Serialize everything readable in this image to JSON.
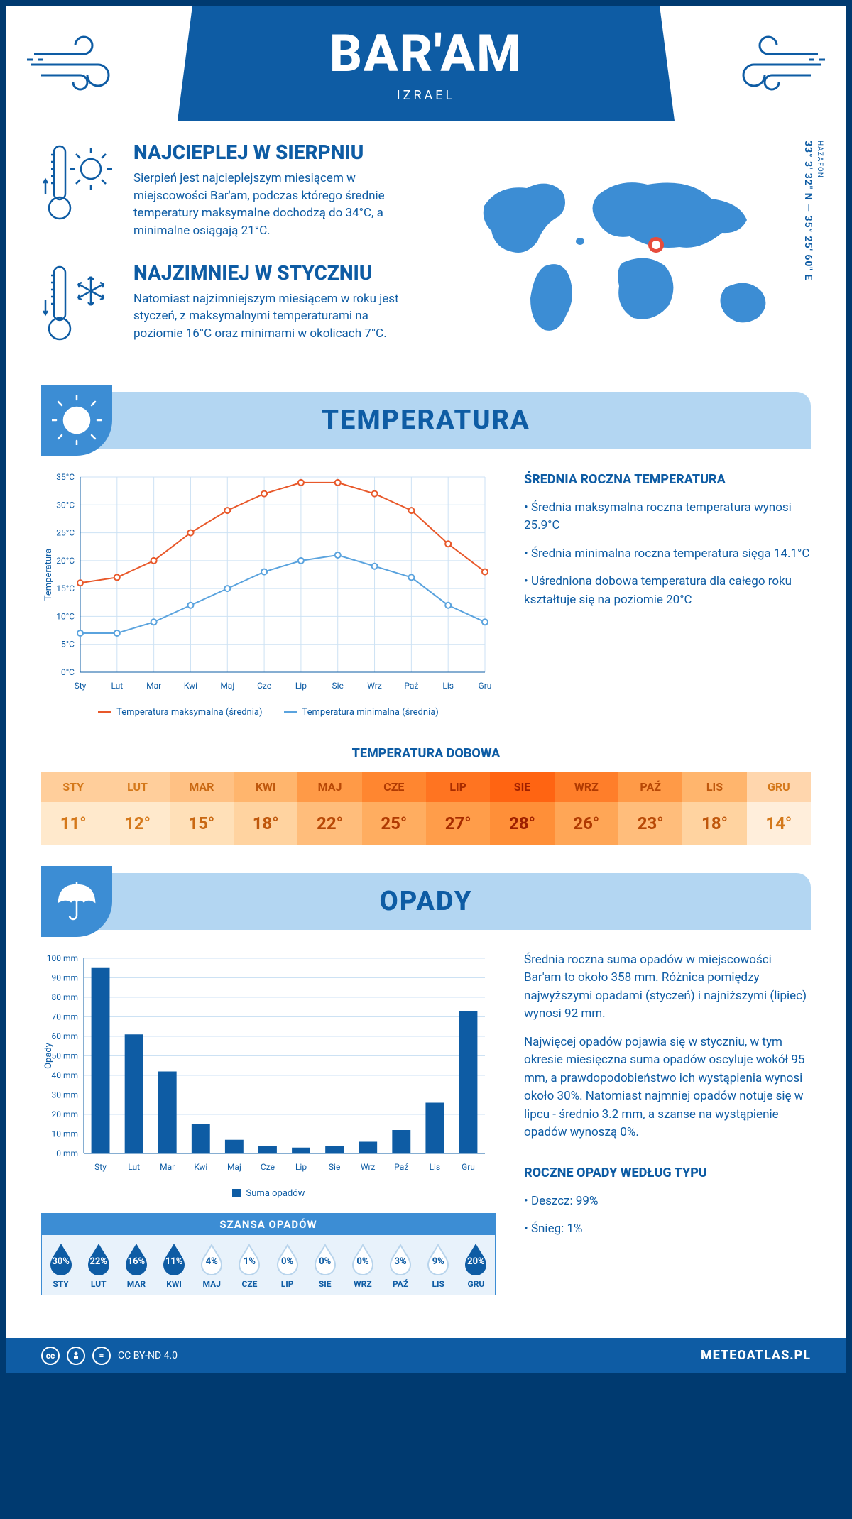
{
  "header": {
    "title": "BAR'AM",
    "subtitle": "IZRAEL"
  },
  "coords": {
    "region": "HAZAFON",
    "lat": "33° 3' 32\" N",
    "lon": "35° 25' 60\" E"
  },
  "intro": {
    "hot": {
      "title": "NAJCIEPLEJ W SIERPNIU",
      "body": "Sierpień jest najcieplejszym miesiącem w miejscowości Bar'am, podczas którego średnie temperatury maksymalne dochodzą do 34°C, a minimalne osiągają 21°C."
    },
    "cold": {
      "title": "NAJZIMNIEJ W STYCZNIU",
      "body": "Natomiast najzimniejszym miesiącem w roku jest styczeń, z maksymalnymi temperaturami na poziomie 16°C oraz minimami w okolicach 7°C."
    }
  },
  "sections": {
    "temperature": "TEMPERATURA",
    "precipitation": "OPADY"
  },
  "months": [
    "Sty",
    "Lut",
    "Mar",
    "Kwi",
    "Maj",
    "Cze",
    "Lip",
    "Sie",
    "Wrz",
    "Paź",
    "Lis",
    "Gru"
  ],
  "months_upper": [
    "STY",
    "LUT",
    "MAR",
    "KWI",
    "MAJ",
    "CZE",
    "LIP",
    "SIE",
    "WRZ",
    "PAŹ",
    "LIS",
    "GRU"
  ],
  "temp_chart": {
    "type": "line",
    "ylabel": "Temperatura",
    "ylim": [
      0,
      35
    ],
    "ytick_step": 5,
    "ytick_suffix": "°C",
    "grid_color": "#cde2f4",
    "series": {
      "max": {
        "label": "Temperatura maksymalna (średnia)",
        "color": "#e8582a",
        "values": [
          16,
          17,
          20,
          25,
          29,
          32,
          34,
          34,
          32,
          29,
          23,
          18
        ]
      },
      "min": {
        "label": "Temperatura minimalna (średnia)",
        "color": "#5aa3de",
        "values": [
          7,
          7,
          9,
          12,
          15,
          18,
          20,
          21,
          19,
          17,
          12,
          9
        ]
      }
    }
  },
  "temp_aside": {
    "title": "ŚREDNIA ROCZNA TEMPERATURA",
    "bullets": [
      "• Średnia maksymalna roczna temperatura wynosi 25.9°C",
      "• Średnia minimalna roczna temperatura sięga 14.1°C",
      "• Uśredniona dobowa temperatura dla całego roku kształtuje się na poziomie 20°C"
    ]
  },
  "daily_temp": {
    "title": "TEMPERATURA DOBOWA",
    "values": [
      "11°",
      "12°",
      "15°",
      "18°",
      "22°",
      "25°",
      "27°",
      "28°",
      "26°",
      "23°",
      "18°",
      "14°"
    ],
    "head_colors": [
      "#ffce9b",
      "#ffce9b",
      "#ffc184",
      "#ffb56d",
      "#ff9a47",
      "#ff8630",
      "#ff7421",
      "#ff6412",
      "#ff7e2a",
      "#ff9a47",
      "#ffb56d",
      "#ffd6ad"
    ],
    "body_colors": [
      "#ffe9cc",
      "#ffe9cc",
      "#ffe0b8",
      "#ffd3a0",
      "#ffbd7b",
      "#ffad60",
      "#ff9d4a",
      "#ff8f38",
      "#ffa656",
      "#ffbd7b",
      "#ffd3a0",
      "#ffeedb"
    ],
    "text_colors": [
      "#d4781a",
      "#d4781a",
      "#c96812",
      "#bf570c",
      "#b84806",
      "#b03a02",
      "#a82c00",
      "#9e1f00",
      "#b03a02",
      "#b84806",
      "#bf570c",
      "#d4781a"
    ]
  },
  "precip_chart": {
    "type": "bar",
    "ylabel": "Opady",
    "ylim": [
      0,
      100
    ],
    "ytick_step": 10,
    "ytick_suffix": " mm",
    "bar_color": "#0e5ca4",
    "grid_color": "#cde2f4",
    "legend": "Suma opadów",
    "values": [
      95,
      61,
      42,
      15,
      7,
      4,
      3,
      4,
      6,
      12,
      26,
      73
    ]
  },
  "precip_aside": {
    "p1": "Średnia roczna suma opadów w miejscowości Bar'am to około 358 mm. Różnica pomiędzy najwyższymi opadami (styczeń) i najniższymi (lipiec) wynosi 92 mm.",
    "p2": "Najwięcej opadów pojawia się w styczniu, w tym okresie miesięczna suma opadów oscyluje wokół 95 mm, a prawdopodobieństwo ich wystąpienia wynosi około 30%. Natomiast najmniej opadów notuje się w lipcu - średnio 3.2 mm, a szanse na wystąpienie opadów wynoszą 0%.",
    "type_title": "ROCZNE OPADY WEDŁUG TYPU",
    "type_rain": "• Deszcz: 99%",
    "type_snow": "• Śnieg: 1%"
  },
  "chance": {
    "title": "SZANSA OPADÓW",
    "values": [
      "30%",
      "22%",
      "16%",
      "11%",
      "4%",
      "1%",
      "0%",
      "0%",
      "0%",
      "3%",
      "9%",
      "20%"
    ],
    "filled": [
      true,
      true,
      true,
      true,
      false,
      false,
      false,
      false,
      false,
      false,
      false,
      true
    ],
    "fill_color": "#0e5ca4",
    "empty_stroke": "#b8d4ec"
  },
  "footer": {
    "license": "CC BY-ND 4.0",
    "site": "METEOATLAS.PL"
  }
}
